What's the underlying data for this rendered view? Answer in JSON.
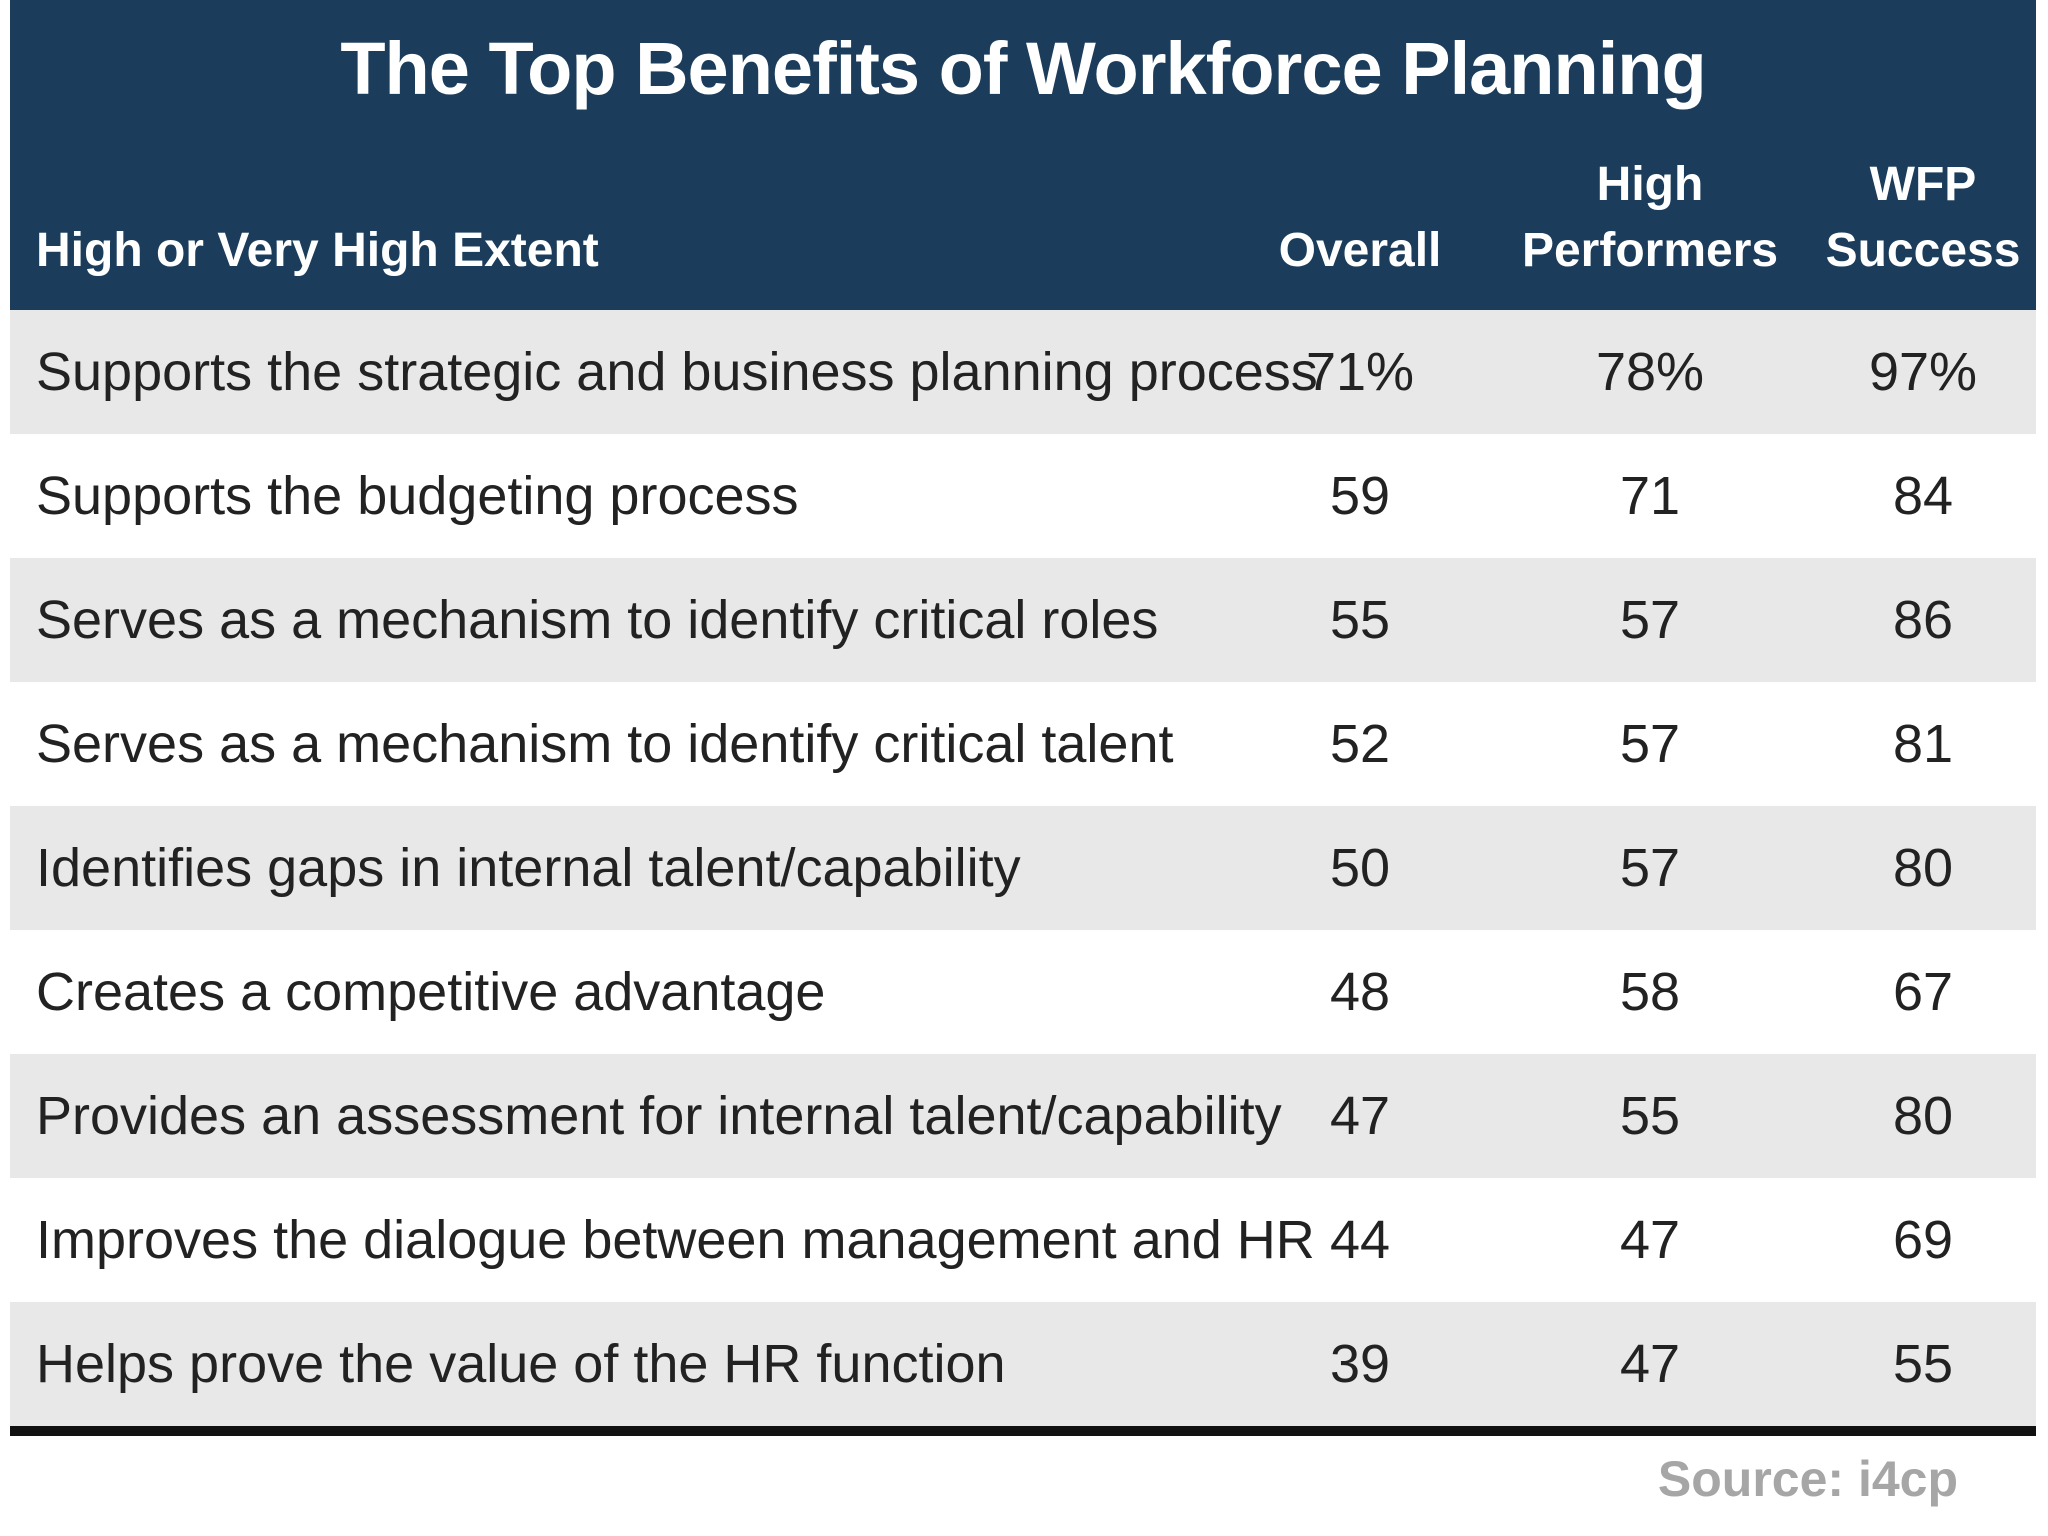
{
  "chart_data": {
    "type": "table",
    "title": "The Top Benefits of Workforce Planning",
    "columns": [
      {
        "label": "High or Very High Extent"
      },
      {
        "label_lines": [
          "",
          "Overall"
        ]
      },
      {
        "label_lines": [
          "High",
          "Performers"
        ]
      },
      {
        "label_lines": [
          "WFP",
          "Success"
        ]
      }
    ],
    "rows": [
      {
        "label": "Supports the strategic and business planning process",
        "values": [
          "71%",
          "78%",
          "97%"
        ]
      },
      {
        "label": "Supports the budgeting process",
        "values": [
          "59",
          "71",
          "84"
        ]
      },
      {
        "label": "Serves as a mechanism to identify critical roles",
        "values": [
          "55",
          "57",
          "86"
        ]
      },
      {
        "label": "Serves as a mechanism to identify critical talent",
        "values": [
          "52",
          "57",
          "81"
        ]
      },
      {
        "label": "Identifies gaps in internal talent/capability",
        "values": [
          "50",
          "57",
          "80"
        ]
      },
      {
        "label": "Creates a competitive advantage",
        "values": [
          "48",
          "58",
          "67"
        ]
      },
      {
        "label": "Provides an assessment for internal talent/capability",
        "values": [
          "47",
          "55",
          "80"
        ]
      },
      {
        "label": "Improves the dialogue between management and HR",
        "values": [
          "44",
          "47",
          "69"
        ]
      },
      {
        "label": "Helps prove the value of the HR function",
        "values": [
          "39",
          "47",
          "55"
        ]
      }
    ],
    "source": "Source: i4cp"
  },
  "colors": {
    "header_background": "#1b3c5a",
    "header_text": "#ffffff",
    "row_shaded": "#e8e8e8",
    "row_plain": "#ffffff",
    "body_text": "#222222",
    "source_text": "#a6a6a6"
  }
}
